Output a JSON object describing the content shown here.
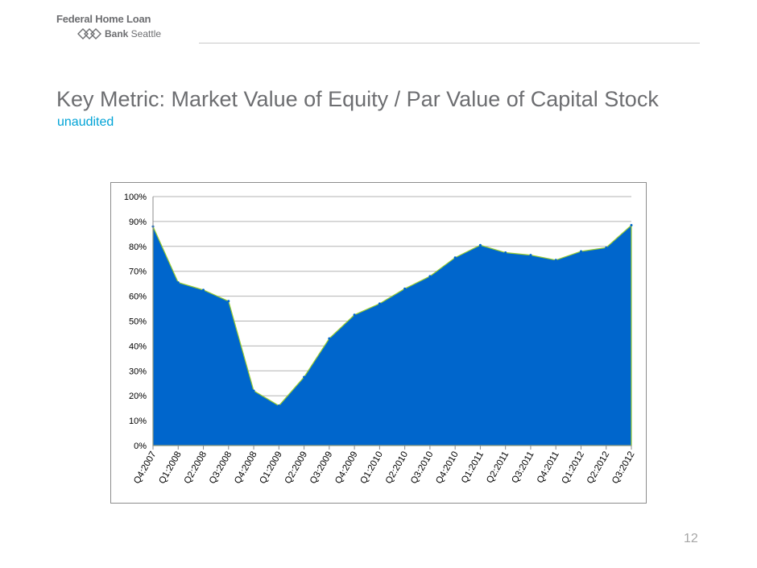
{
  "logo": {
    "line1": "Federal Home Loan",
    "line2_bold": "Bank",
    "line2_rest": " Seattle"
  },
  "title": "Key Metric: Market Value of Equity / Par Value of Capital Stock",
  "subtitle": "unaudited",
  "page_number": "12",
  "colors": {
    "fill": "#0066cc",
    "outline": "#9acd32",
    "title": "#6d6e71",
    "subtitle": "#00a3d6"
  },
  "chart_data": {
    "type": "area",
    "categories": [
      "Q4:2007",
      "Q1:2008",
      "Q2:2008",
      "Q3:2008",
      "Q4:2008",
      "Q1:2009",
      "Q2:2009",
      "Q3:2009",
      "Q4:2009",
      "Q1:2010",
      "Q2:2010",
      "Q3:2010",
      "Q4:2010",
      "Q1:2011",
      "Q2:2011",
      "Q3:2011",
      "Q4:2011",
      "Q1:2012",
      "Q2:2012",
      "Q3:2012"
    ],
    "values": [
      88,
      65.5,
      62.5,
      58,
      22,
      16,
      27.5,
      43,
      52.5,
      57,
      63,
      68,
      75.5,
      80.5,
      77.5,
      76.5,
      74.5,
      78,
      79.5,
      88.5
    ],
    "y_ticks": [
      "0%",
      "10%",
      "20%",
      "30%",
      "40%",
      "50%",
      "60%",
      "70%",
      "80%",
      "90%",
      "100%"
    ],
    "ylim": [
      0,
      100
    ],
    "y_unit": "%",
    "grid": true,
    "legend": "none"
  }
}
